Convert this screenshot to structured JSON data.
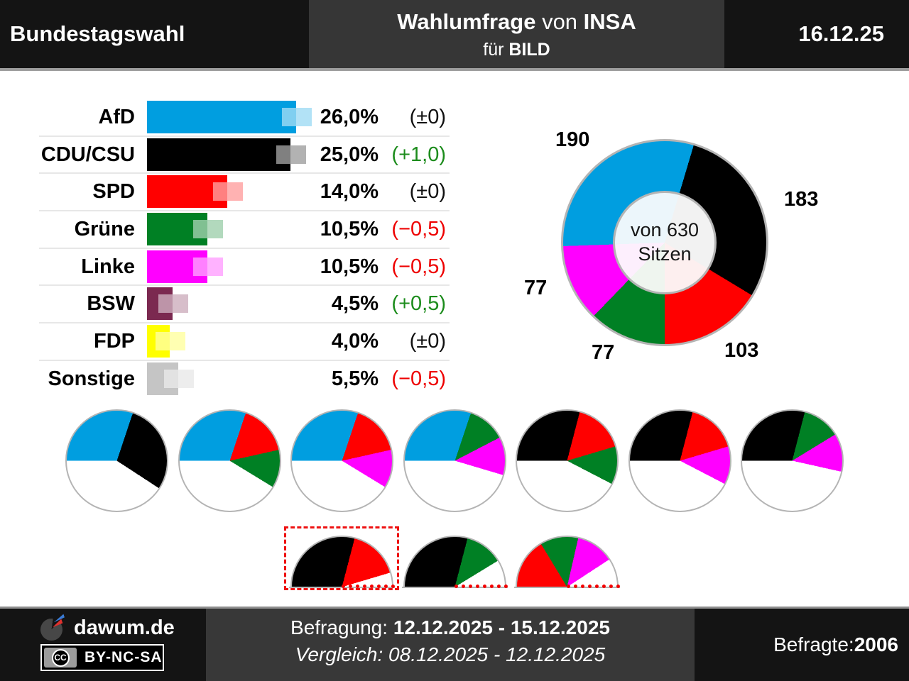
{
  "header": {
    "left_title": "Bundestagswahl",
    "center_bold1": "Wahlumfrage",
    "center_mid": " von ",
    "center_bold2": "INSA",
    "center2_pre": "für ",
    "center2_bold": "BILD",
    "date": "16.12.25"
  },
  "footer": {
    "brand": "dawum.de",
    "cc_label": "CC",
    "license": "BY-NC-SA",
    "line1_label": "Befragung: ",
    "line1_value": "12.12.2025 - 15.12.2025",
    "line2": "Vergleich: 08.12.2025 - 12.12.2025",
    "respondents_label": "Befragte: ",
    "respondents_value": "2006"
  },
  "chart_data": {
    "type": [
      "bar",
      "donut",
      "pie",
      "half-pie"
    ],
    "title": "Wahlumfrage von INSA für BILD - Bundestagswahl",
    "parties": [
      {
        "id": "afd",
        "label": "AfD",
        "color": "#009EE0",
        "pale": "#ECF6FB",
        "pct": 26.0,
        "pct_label": "26,0%",
        "change": 0.0,
        "change_label": "(±0)",
        "change_dir": "zero",
        "seats": 190
      },
      {
        "id": "cdu",
        "label": "CDU/CSU",
        "color": "#000000",
        "pale": "#F2F2F2",
        "pct": 25.0,
        "pct_label": "25,0%",
        "change": 1.0,
        "change_label": "(+1,0)",
        "change_dir": "up",
        "seats": 183
      },
      {
        "id": "spd",
        "label": "SPD",
        "color": "#FF0000",
        "pale": "#FDEFEF",
        "pct": 14.0,
        "pct_label": "14,0%",
        "change": 0.0,
        "change_label": "(±0)",
        "change_dir": "zero",
        "seats": 103
      },
      {
        "id": "gruene",
        "label": "Grüne",
        "color": "#008024",
        "pale": "#EFF5EF",
        "pct": 10.5,
        "pct_label": "10,5%",
        "change": -0.5,
        "change_label": "(−0,5)",
        "change_dir": "down",
        "seats": 77
      },
      {
        "id": "linke",
        "label": "Linke",
        "color": "#FF00FF",
        "pale": "#FDEFFD",
        "pct": 10.5,
        "pct_label": "10,5%",
        "change": -0.5,
        "change_label": "(−0,5)",
        "change_dir": "down",
        "seats": 77
      },
      {
        "id": "bsw",
        "label": "BSW",
        "color": "#7B2950",
        "pct": 4.5,
        "pct_label": "4,5%",
        "change": 0.5,
        "change_label": "(+0,5)",
        "change_dir": "up",
        "seats": 0
      },
      {
        "id": "fdp",
        "label": "FDP",
        "color": "#FFFF00",
        "pct": 4.0,
        "pct_label": "4,0%",
        "change": 0.0,
        "change_label": "(±0)",
        "change_dir": "zero",
        "seats": 0
      },
      {
        "id": "sonstige",
        "label": "Sonstige",
        "color": "#C5C5C5",
        "pct": 5.5,
        "pct_label": "5,5%",
        "change": -0.5,
        "change_label": "(−0,5)",
        "change_dir": "down",
        "seats": 0
      }
    ],
    "change_colors": {
      "up": "#1C8C1C",
      "down": "#EE0000",
      "zero": "#111111"
    },
    "donut": {
      "total_seats": 630,
      "center_line1": "von 630",
      "center_line2": "Sitzen",
      "start_deg": -92,
      "order": [
        "afd",
        "cdu",
        "spd",
        "gruene",
        "linke"
      ],
      "seat_labels": [
        "190",
        "183",
        "103",
        "77",
        "77"
      ]
    },
    "coalition_pies": {
      "start_deg": -90,
      "items": [
        [
          "afd",
          "cdu"
        ],
        [
          "afd",
          "spd",
          "gruene"
        ],
        [
          "afd",
          "spd",
          "linke"
        ],
        [
          "afd",
          "gruene",
          "linke"
        ],
        [
          "cdu",
          "spd",
          "gruene"
        ],
        [
          "cdu",
          "spd",
          "linke"
        ],
        [
          "cdu",
          "gruene",
          "linke"
        ]
      ]
    },
    "majority_half_pies": {
      "majority_seats": 315,
      "items": [
        {
          "parties": [
            "cdu",
            "spd"
          ],
          "highlighted": true
        },
        {
          "parties": [
            "cdu",
            "gruene"
          ],
          "highlighted": false
        },
        {
          "parties": [
            "spd",
            "gruene",
            "linke"
          ],
          "highlighted": false
        }
      ]
    }
  }
}
